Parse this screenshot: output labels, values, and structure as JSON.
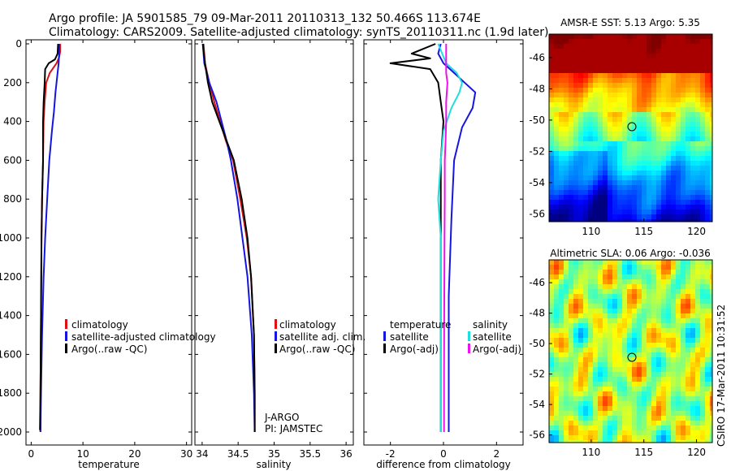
{
  "title_line1": "Argo profile: JA 5901585_79 09-Mar-2011 20110313_132 50.466S 113.674E",
  "title_line2": "Climatology: CARS2009. Satellite-adjusted climatology: synTS_20110311.nc (1.9d later)",
  "colors": {
    "red": "#dd1111",
    "blue": "#1515e0",
    "black": "#000000",
    "cyan": "#22dddd",
    "magenta": "#ee11ee"
  },
  "chart_data": [
    {
      "type": "line",
      "xlabel": "temperature",
      "ylabel": "",
      "xlim": [
        -1,
        31
      ],
      "ylim": [
        2040,
        0
      ],
      "xticks": [
        0,
        10,
        20,
        30
      ],
      "yticks": [
        0,
        200,
        400,
        600,
        800,
        1000,
        1200,
        1400,
        1600,
        1800,
        2000
      ],
      "legend": [
        "climatology",
        "satellite-adjusted climatology",
        "Argo(..raw -QC)"
      ],
      "series": [
        {
          "name": "climatology",
          "color": "red",
          "x": [
            5.6,
            5.6,
            5.4,
            4.9,
            3.6,
            2.9,
            2.6,
            2.4,
            2.3,
            2.1,
            2.0,
            1.9,
            1.8,
            1.8
          ],
          "y": [
            0,
            40,
            70,
            100,
            150,
            200,
            300,
            400,
            600,
            800,
            1000,
            1400,
            1800,
            2000
          ]
        },
        {
          "name": "satellite-adjusted climatology",
          "color": "blue",
          "x": [
            5.4,
            5.4,
            5.3,
            5.1,
            4.7,
            4.4,
            4.0,
            3.5,
            3.1,
            2.7,
            2.4,
            2.1,
            1.9,
            1.8
          ],
          "y": [
            0,
            50,
            100,
            150,
            250,
            350,
            450,
            600,
            800,
            1000,
            1200,
            1500,
            1800,
            2000
          ]
        },
        {
          "name": "Argo(..raw -QC)",
          "color": "black",
          "x": [
            5.2,
            5.1,
            4.6,
            3.4,
            2.7,
            2.6,
            2.4,
            2.3,
            2.3,
            2.1,
            2.0,
            1.9,
            1.8,
            1.7
          ],
          "y": [
            0,
            50,
            80,
            100,
            130,
            200,
            300,
            400,
            600,
            800,
            1000,
            1400,
            1800,
            1990
          ]
        }
      ]
    },
    {
      "type": "line",
      "xlabel": "salinity",
      "xlim": [
        33.9,
        36.1
      ],
      "ylim": [
        2040,
        0
      ],
      "xticks": [
        34,
        34.5,
        35,
        35.5,
        36
      ],
      "yticks": [
        0,
        200,
        400,
        600,
        800,
        1000,
        1200,
        1400,
        1600,
        1800,
        2000
      ],
      "legend": [
        "climatology",
        "satellite adj. clim.",
        "Argo(..raw -QC)"
      ],
      "annotations": [
        "J-ARGO",
        "PI: JAMSTEC"
      ],
      "series": [
        {
          "name": "climatology",
          "color": "red",
          "x": [
            34.02,
            34.04,
            34.1,
            34.17,
            34.25,
            34.33,
            34.43,
            34.53,
            34.62,
            34.68,
            34.72,
            34.73,
            34.73
          ],
          "y": [
            0,
            100,
            200,
            300,
            400,
            500,
            600,
            800,
            1000,
            1200,
            1500,
            1800,
            2000
          ]
        },
        {
          "name": "satellite adj. clim.",
          "color": "blue",
          "x": [
            34.01,
            34.03,
            34.1,
            34.2,
            34.27,
            34.34,
            34.4,
            34.49,
            34.56,
            34.63,
            34.69,
            34.72,
            34.73
          ],
          "y": [
            0,
            100,
            200,
            300,
            400,
            500,
            600,
            800,
            1000,
            1200,
            1500,
            1800,
            2000
          ]
        },
        {
          "name": "Argo(..raw -QC)",
          "color": "black",
          "x": [
            34.01,
            34.04,
            34.08,
            34.14,
            34.24,
            34.34,
            34.44,
            34.55,
            34.63,
            34.68,
            34.72,
            34.73,
            34.73
          ],
          "y": [
            0,
            100,
            200,
            300,
            400,
            500,
            600,
            800,
            1000,
            1200,
            1500,
            1800,
            2000
          ]
        }
      ]
    },
    {
      "type": "line",
      "xlabel": "difference from climatology",
      "xlim": [
        -3,
        3
      ],
      "ylim": [
        2040,
        0
      ],
      "xticks": [
        -2,
        0,
        2
      ],
      "yticks": [
        0,
        200,
        400,
        600,
        800,
        1000,
        1200,
        1400,
        1600,
        1800,
        2000
      ],
      "legend_headers": [
        "temperature",
        "salinity"
      ],
      "legend": [
        "satellite",
        "Argo(-adj)",
        "satellite",
        "Argo(-adj)"
      ],
      "series": [
        {
          "name": "temperature satellite",
          "color": "blue",
          "x": [
            -0.1,
            -0.2,
            0.0,
            0.4,
            0.8,
            1.2,
            1.1,
            0.7,
            0.4,
            0.3,
            0.2,
            0.2,
            0.2
          ],
          "y": [
            0,
            50,
            100,
            150,
            200,
            250,
            330,
            430,
            600,
            900,
            1300,
            1700,
            2000
          ]
        },
        {
          "name": "temperature Argo(-adj)",
          "color": "black",
          "x": [
            -0.3,
            -1.2,
            -0.5,
            -2.0,
            -0.5,
            -0.2,
            -0.1,
            0.0,
            -0.1,
            -0.1,
            -0.1,
            -0.1,
            -0.1
          ],
          "y": [
            0,
            50,
            75,
            100,
            130,
            200,
            300,
            400,
            600,
            900,
            1300,
            1700,
            2000
          ]
        },
        {
          "name": "salinity satellite",
          "color": "cyan",
          "x": [
            -0.2,
            0.1,
            0.5,
            0.7,
            0.6,
            0.3,
            0.0,
            -0.1,
            -0.2,
            -0.1,
            -0.1,
            -0.1,
            -0.1
          ],
          "y": [
            0,
            100,
            150,
            200,
            250,
            330,
            450,
            600,
            800,
            1000,
            1300,
            1700,
            2000
          ]
        },
        {
          "name": "salinity Argo(-adj)",
          "color": "magenta",
          "x": [
            0.1,
            0.1,
            0.1,
            0.15,
            0.1,
            0.1,
            0.08,
            0.05,
            0.05,
            0.04,
            0.03,
            0.02,
            0.02
          ],
          "y": [
            0,
            100,
            150,
            200,
            300,
            400,
            500,
            600,
            800,
            1000,
            1300,
            1700,
            2000
          ]
        }
      ]
    },
    {
      "type": "heatmap",
      "title": "AMSR-E SST: 5.13 Argo: 5.35",
      "xlim": [
        106,
        121.5
      ],
      "ylim": [
        -56.5,
        -44.5
      ],
      "xticks": [
        110,
        115,
        120
      ],
      "yticks": [
        -46,
        -48,
        -50,
        -52,
        -54,
        -56
      ],
      "marker": {
        "lon": 113.674,
        "lat": -50.466
      }
    },
    {
      "type": "heatmap",
      "title": "Altimetric SLA: 0.06 Argo: -0.036",
      "xlim": [
        106,
        121.5
      ],
      "ylim": [
        -56.5,
        -44.5
      ],
      "xticks": [
        110,
        115,
        120
      ],
      "yticks": [
        -46,
        -48,
        -50,
        -52,
        -54,
        -56
      ],
      "marker": {
        "lon": 113.674,
        "lat": -50.466
      }
    }
  ],
  "side_label": "CSIRO 17-Mar-2011 10:31:52"
}
